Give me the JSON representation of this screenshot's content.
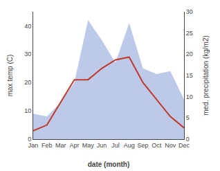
{
  "chart_data": {
    "type": "line",
    "categories": [
      "Jan",
      "Feb",
      "Mar",
      "Apr",
      "May",
      "Jun",
      "Jul",
      "Aug",
      "Sep",
      "Oct",
      "Nov",
      "Dec"
    ],
    "series": [
      {
        "type": "area",
        "color": "#bdc9e8",
        "values": [
          9,
          8,
          13,
          20,
          42,
          35,
          27,
          41,
          25,
          23,
          24,
          14
        ]
      },
      {
        "type": "line",
        "color": "#c0392b",
        "values": [
          3,
          5,
          13,
          21,
          21,
          25,
          28,
          29,
          20,
          14,
          8,
          4
        ]
      }
    ],
    "xlabel": "date (month)",
    "ylabel": "max temp (C)",
    "y2label": "med. precipitation (kg/m2)",
    "ylim": [
      0,
      45
    ],
    "yticks": [
      0,
      10,
      20,
      30,
      40
    ],
    "y2lim": [
      0,
      30
    ],
    "y2ticks": [
      0,
      5,
      10,
      15,
      20,
      25,
      30
    ],
    "grid": false
  }
}
